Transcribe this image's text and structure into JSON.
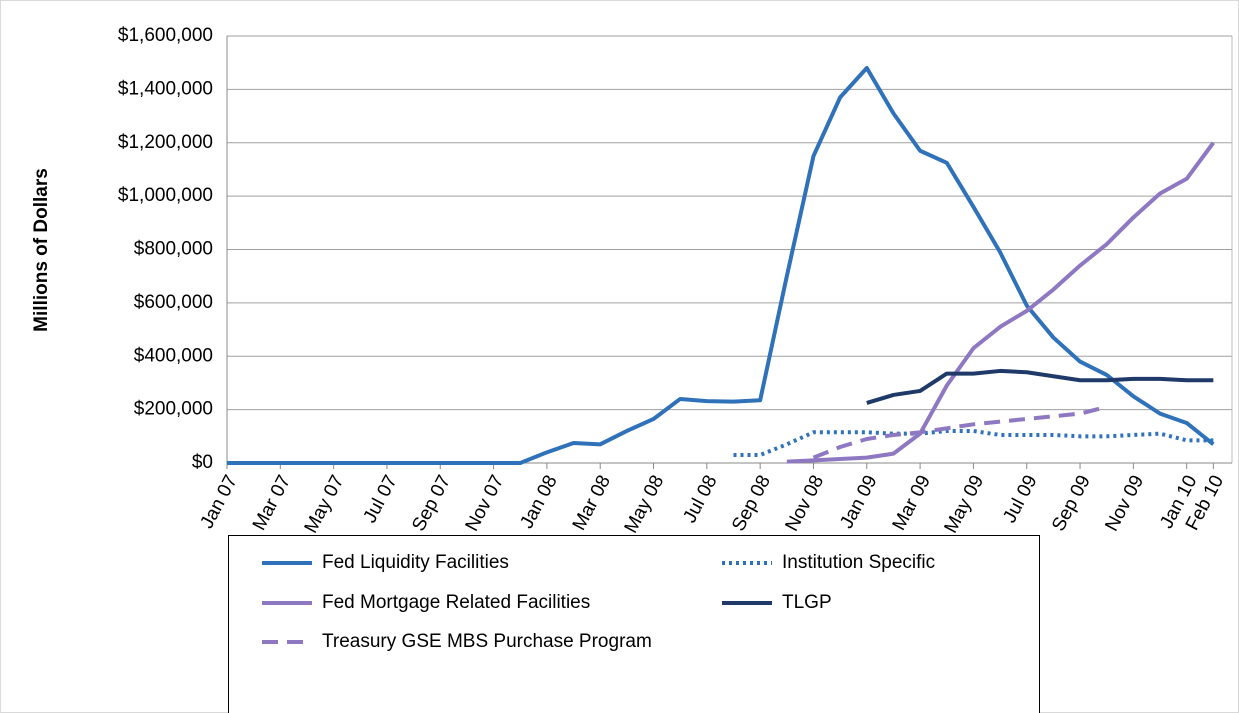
{
  "chart_data": {
    "type": "line",
    "ylabel": "Millions of Dollars",
    "x": [
      0,
      1,
      2,
      3,
      4,
      5,
      6,
      7,
      8,
      9,
      10,
      11,
      12,
      13,
      14,
      15,
      16,
      17,
      18,
      19,
      20,
      21,
      22,
      23,
      24,
      25,
      26,
      27,
      28,
      29,
      30,
      31,
      32,
      33,
      34,
      35,
      36,
      37
    ],
    "xlim": [
      0,
      37.7
    ],
    "xticks": [
      {
        "value": 0,
        "label": "Jan 07"
      },
      {
        "value": 2,
        "label": "Mar 07"
      },
      {
        "value": 4,
        "label": "May 07"
      },
      {
        "value": 6,
        "label": "Jul 07"
      },
      {
        "value": 8,
        "label": "Sep 07"
      },
      {
        "value": 10,
        "label": "Nov 07"
      },
      {
        "value": 12,
        "label": "Jan 08"
      },
      {
        "value": 14,
        "label": "Mar 08"
      },
      {
        "value": 16,
        "label": "May 08"
      },
      {
        "value": 18,
        "label": "Jul 08"
      },
      {
        "value": 20,
        "label": "Sep 08"
      },
      {
        "value": 22,
        "label": "Nov 08"
      },
      {
        "value": 24,
        "label": "Jan 09"
      },
      {
        "value": 26,
        "label": "Mar 09"
      },
      {
        "value": 28,
        "label": "May 09"
      },
      {
        "value": 30,
        "label": "Jul 09"
      },
      {
        "value": 32,
        "label": "Sep 09"
      },
      {
        "value": 34,
        "label": "Nov 09"
      },
      {
        "value": 36,
        "label": "Jan 10"
      },
      {
        "value": 37,
        "label": "Feb 10"
      }
    ],
    "ylim": [
      0,
      1600000
    ],
    "yticks": [
      {
        "value": 0,
        "label": "$0"
      },
      {
        "value": 200000,
        "label": "$200,000"
      },
      {
        "value": 400000,
        "label": "$400,000"
      },
      {
        "value": 600000,
        "label": "$600,000"
      },
      {
        "value": 800000,
        "label": "$800,000"
      },
      {
        "value": 1000000,
        "label": "$1,000,000"
      },
      {
        "value": 1200000,
        "label": "$1,200,000"
      },
      {
        "value": 1400000,
        "label": "$1,400,000"
      },
      {
        "value": 1600000,
        "label": "$1,600,000"
      }
    ],
    "grid": true,
    "legend": "bottom",
    "series": [
      {
        "name": "Fed Liquidity Facilities",
        "color": "#2f72b9",
        "style": "solid",
        "values": [
          0,
          0,
          0,
          0,
          0,
          0,
          0,
          0,
          0,
          0,
          0,
          0,
          40000,
          75000,
          70000,
          120000,
          165000,
          240000,
          232000,
          230000,
          235000,
          700000,
          1150000,
          1370000,
          1480000,
          1310000,
          1170000,
          1125000,
          960000,
          790000,
          590000,
          470000,
          380000,
          330000,
          250000,
          185000,
          150000,
          70000
        ]
      },
      {
        "name": "Institution Specific",
        "color": "#2f72b9",
        "style": "dotted",
        "values": [
          null,
          null,
          null,
          null,
          null,
          null,
          null,
          null,
          null,
          null,
          null,
          null,
          null,
          null,
          null,
          null,
          null,
          null,
          null,
          30000,
          30000,
          70000,
          115000,
          115000,
          115000,
          110000,
          110000,
          120000,
          120000,
          105000,
          105000,
          105000,
          100000,
          100000,
          105000,
          110000,
          85000,
          85000
        ]
      },
      {
        "name": "Fed Mortgage Related Facilities",
        "color": "#8f78c2",
        "style": "solid",
        "values": [
          null,
          null,
          null,
          null,
          null,
          null,
          null,
          null,
          null,
          null,
          null,
          null,
          null,
          null,
          null,
          null,
          null,
          null,
          null,
          null,
          null,
          5000,
          10000,
          15000,
          20000,
          35000,
          110000,
          290000,
          430000,
          510000,
          570000,
          650000,
          740000,
          820000,
          920000,
          1010000,
          1065000,
          1200000
        ]
      },
      {
        "name": "TLGP",
        "color": "#1f3a68",
        "style": "solid",
        "values": [
          null,
          null,
          null,
          null,
          null,
          null,
          null,
          null,
          null,
          null,
          null,
          null,
          null,
          null,
          null,
          null,
          null,
          null,
          null,
          null,
          null,
          null,
          null,
          null,
          225000,
          255000,
          270000,
          335000,
          335000,
          345000,
          340000,
          325000,
          310000,
          310000,
          315000,
          315000,
          310000,
          310000
        ]
      },
      {
        "name": "Treasury GSE MBS Purchase Program",
        "color": "#8f78c2",
        "style": "dashed",
        "values": [
          null,
          null,
          null,
          null,
          null,
          null,
          null,
          null,
          null,
          null,
          null,
          null,
          null,
          null,
          null,
          null,
          null,
          null,
          null,
          null,
          null,
          null,
          20000,
          60000,
          90000,
          105000,
          115000,
          130000,
          145000,
          155000,
          165000,
          175000,
          185000,
          210000,
          null,
          null,
          null,
          null
        ]
      }
    ]
  }
}
